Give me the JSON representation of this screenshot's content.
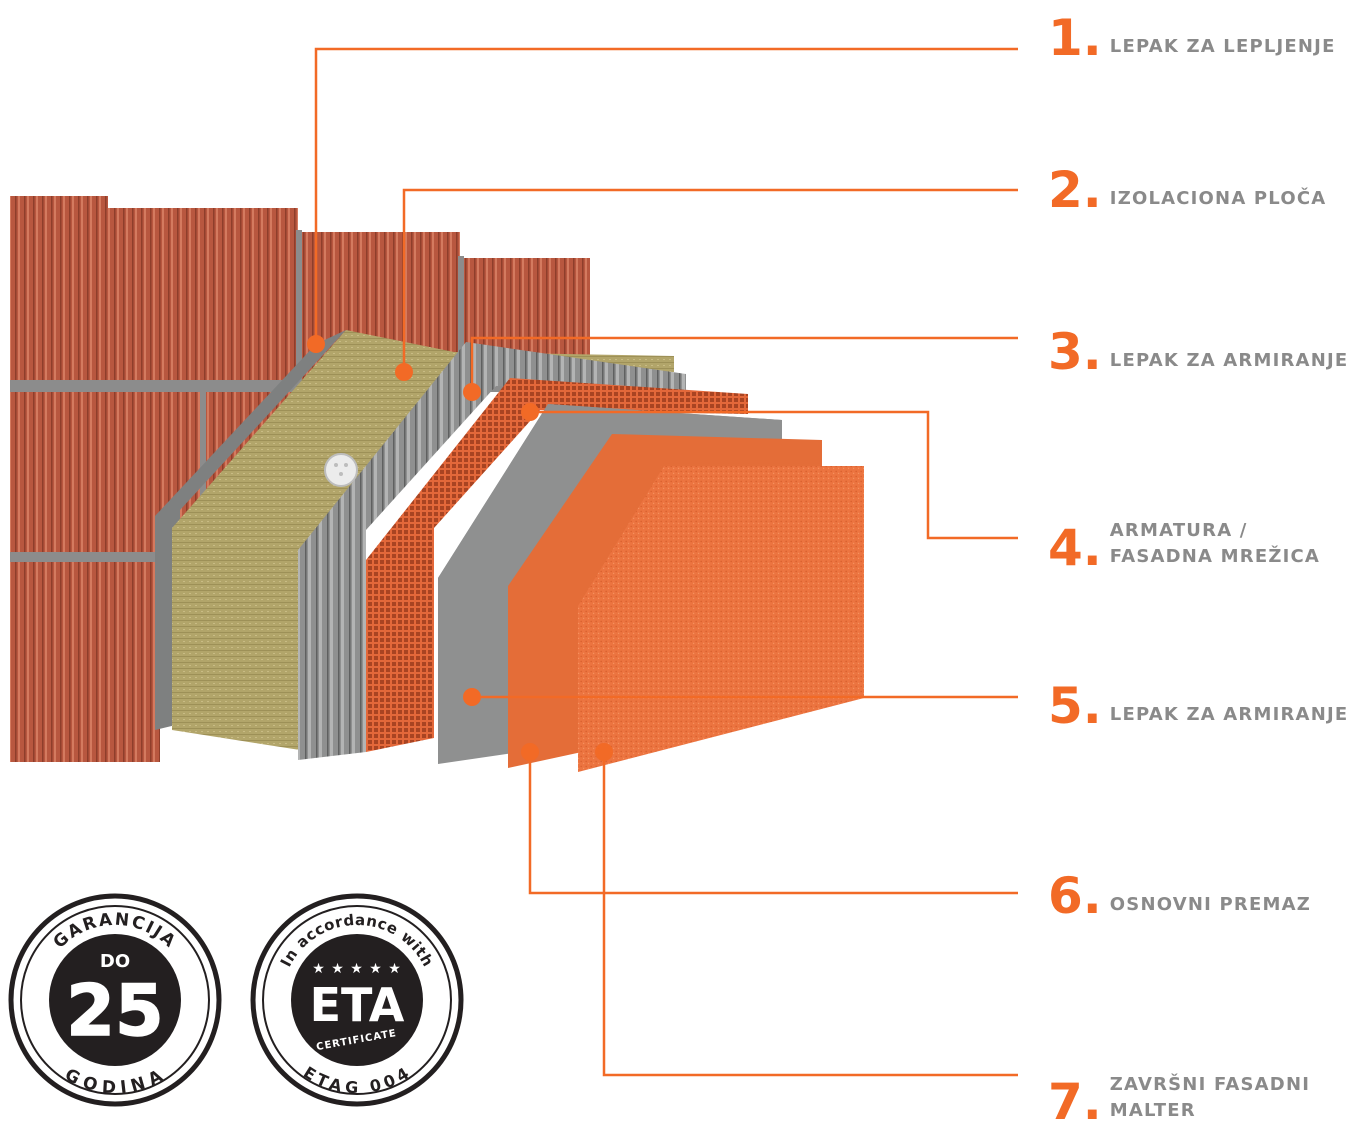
{
  "layers": [
    {
      "number": "1.",
      "label": "LEPAK ZA LEPLJENJE"
    },
    {
      "number": "2.",
      "label": "IZOLACIONA PLOČA"
    },
    {
      "number": "3.",
      "label": "LEPAK ZA ARMIRANJE"
    },
    {
      "number": "4.",
      "label": "ARMATURA /\nFASADNA MREŽICA"
    },
    {
      "number": "5.",
      "label": "LEPAK ZA ARMIRANJE"
    },
    {
      "number": "6.",
      "label": "OSNOVNI PREMAZ"
    },
    {
      "number": "7.",
      "label": "ZAVRŠNI FASADNI\nMALTER"
    }
  ],
  "badges": {
    "guarantee": {
      "top_text": "GARANCIJA",
      "small": "DO",
      "big": "25",
      "bottom_text": "GODINA"
    },
    "eta": {
      "top_text": "In accordance with",
      "stars": "★ ★ ★ ★ ★",
      "big": "ETA",
      "ribbon": "CERTIFICATE",
      "bottom_text": "ETAG 004"
    }
  },
  "colors": {
    "accent": "#f26a26",
    "label_grey": "#8a8a8a",
    "brick": "#b5563e",
    "insulation": "#b3a66b",
    "adhesive_grey": "#8f9090",
    "mesh": "#d2572b",
    "render": "#e8703c"
  }
}
